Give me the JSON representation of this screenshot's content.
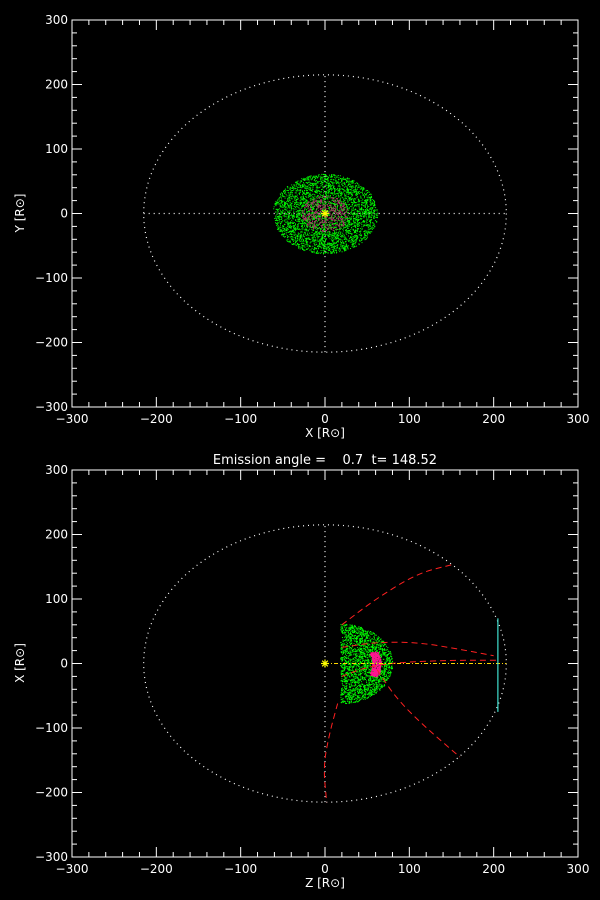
{
  "chart_data": [
    {
      "type": "scatter",
      "title": "",
      "xlabel": "X [R⊙]",
      "ylabel": "Y [R⊙]",
      "xlim": [
        -300,
        300
      ],
      "ylim": [
        -300,
        300
      ],
      "xticks": [
        -300,
        -200,
        -100,
        0,
        100,
        200,
        300
      ],
      "yticks": [
        -300,
        -200,
        -100,
        0,
        100,
        200,
        300
      ],
      "tick_labels_x": [
        "−300",
        "−200",
        "−100",
        "0",
        "100",
        "200",
        "300"
      ],
      "tick_labels_y": [
        "−300",
        "−200",
        "−100",
        "0",
        "100",
        "200",
        "300"
      ],
      "grid": false,
      "background": "#000000",
      "series": [
        {
          "kind": "dotted-circle",
          "radius": 215,
          "color": "#ffffff"
        },
        {
          "kind": "dotted-axis-lines",
          "extent": 215,
          "color": "#ffffff"
        },
        {
          "kind": "particle-disk",
          "center": [
            0,
            0
          ],
          "radius_x": 62,
          "radius_y": 62,
          "color": "#00ff00",
          "count": 3200
        },
        {
          "kind": "particle-disk",
          "center": [
            0,
            0
          ],
          "radius_x": 28,
          "radius_y": 28,
          "color": "#b0306e",
          "count": 500
        },
        {
          "kind": "star",
          "at": [
            0,
            0
          ],
          "color": "#ffff00"
        }
      ]
    },
    {
      "type": "scatter",
      "title": "Emission angle =    0.7  t= 148.52",
      "xlabel": "Z [R⊙]",
      "ylabel": "X [R⊙]",
      "xlim": [
        -300,
        300
      ],
      "ylim": [
        -300,
        300
      ],
      "xticks": [
        -300,
        -200,
        -100,
        0,
        100,
        200,
        300
      ],
      "yticks": [
        -300,
        -200,
        -100,
        0,
        100,
        200,
        300
      ],
      "tick_labels_x": [
        "−300",
        "−200",
        "−100",
        "0",
        "100",
        "200",
        "300"
      ],
      "tick_labels_y": [
        "−300",
        "−200",
        "−100",
        "0",
        "100",
        "200",
        "300"
      ],
      "grid": false,
      "background": "#000000",
      "series": [
        {
          "kind": "dotted-circle",
          "radius": 215,
          "color": "#ffffff"
        },
        {
          "kind": "dotted-vertical-line",
          "x": 0,
          "extent": 215,
          "color": "#ffffff"
        },
        {
          "kind": "particle-half-disk",
          "center": [
            18,
            0
          ],
          "radius": 62,
          "color": "#00ff00",
          "count": 2000
        },
        {
          "kind": "particle-arc",
          "center": [
            18,
            0
          ],
          "inner_radius": 38,
          "outer_radius": 48,
          "color": "#ff1493",
          "count": 300
        },
        {
          "kind": "dashed-curve",
          "color": "#ff2020",
          "points": [
            [
              20,
              60
            ],
            [
              60,
              100
            ],
            [
              110,
              140
            ],
            [
              150,
              153
            ]
          ]
        },
        {
          "kind": "dashed-curve",
          "color": "#ff2020",
          "points": [
            [
              20,
              25
            ],
            [
              60,
              33
            ],
            [
              110,
              33
            ],
            [
              160,
              22
            ],
            [
              200,
              12
            ]
          ]
        },
        {
          "kind": "dashed-curve",
          "color": "#ff2020",
          "points": [
            [
              20,
              -20
            ],
            [
              50,
              -5
            ],
            [
              90,
              2
            ],
            [
              150,
              5
            ],
            [
              205,
              5
            ]
          ]
        },
        {
          "kind": "dashed-curve",
          "color": "#ff2020",
          "points": [
            [
              15,
              -62
            ],
            [
              5,
              -110
            ],
            [
              -2,
              -160
            ],
            [
              2,
              -215
            ]
          ]
        },
        {
          "kind": "dashed-curve",
          "color": "#ff2020",
          "points": [
            [
              62,
              -10
            ],
            [
              85,
              -55
            ],
            [
              120,
              -100
            ],
            [
              160,
              -145
            ]
          ]
        },
        {
          "kind": "dash-dot-line",
          "color": "#ffd700",
          "from": [
            0,
            0
          ],
          "to": [
            215,
            0
          ]
        },
        {
          "kind": "vertical-segment",
          "color": "#40e0d0",
          "x": 205,
          "y_from": -75,
          "y_to": 70
        },
        {
          "kind": "star",
          "at": [
            0,
            0
          ],
          "color": "#ffff00"
        }
      ]
    }
  ]
}
